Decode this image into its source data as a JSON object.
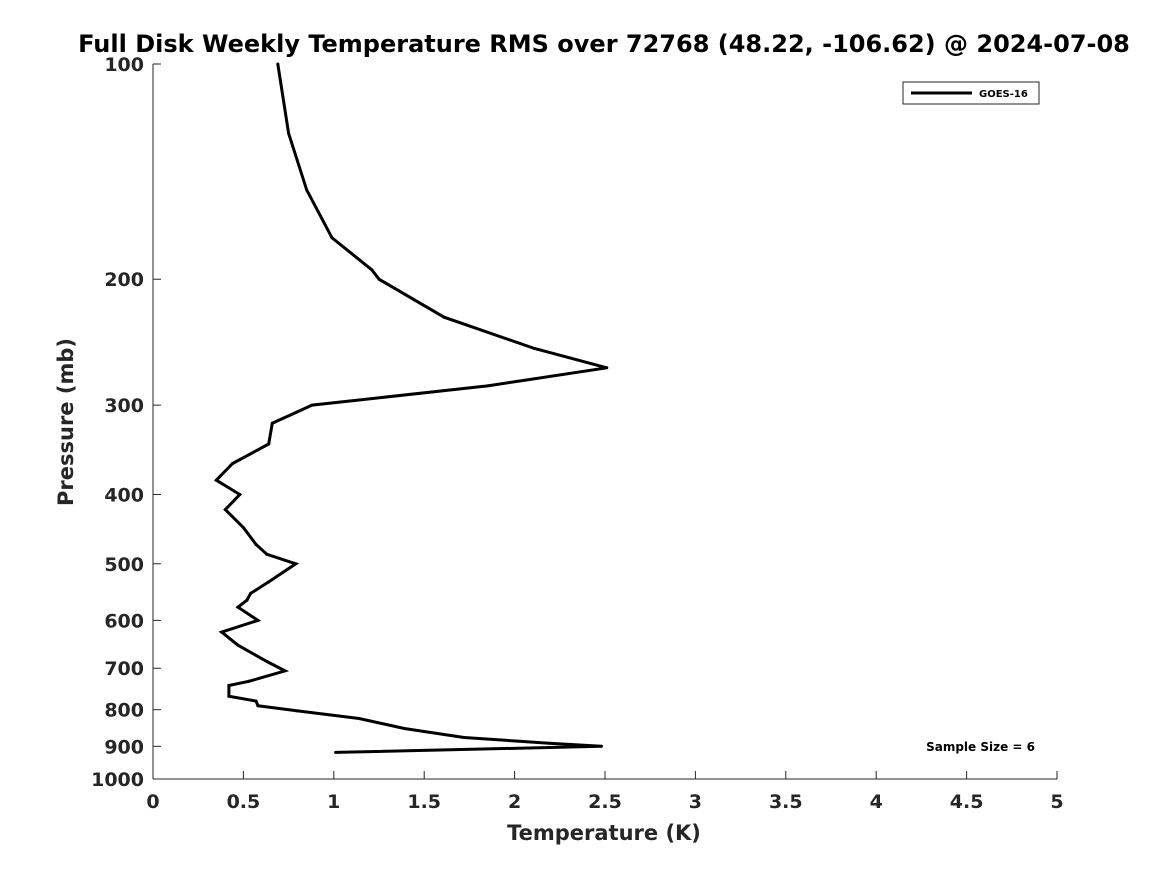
{
  "chart_data": {
    "type": "line",
    "title": "Full Disk Weekly Temperature RMS over 72768 (48.22, -106.62) @ 2024-07-08",
    "xlabel": "Temperature (K)",
    "ylabel": "Pressure (mb)",
    "xlim": [
      0,
      5
    ],
    "ylim": [
      1000,
      100
    ],
    "y_scale": "log",
    "y_reversed": true,
    "x_ticks": [
      "0",
      "0.5",
      "1",
      "1.5",
      "2",
      "2.5",
      "3",
      "3.5",
      "4",
      "4.5",
      "5"
    ],
    "y_ticks": [
      "100",
      "200",
      "300",
      "400",
      "500",
      "600",
      "700",
      "800",
      "900",
      "1000"
    ],
    "grid": false,
    "legend_position": "top-right",
    "series": [
      {
        "name": "GOES-16",
        "color": "#000000",
        "points": [
          [
            0.69,
            100
          ],
          [
            0.75,
            125
          ],
          [
            0.85,
            150
          ],
          [
            0.99,
            175
          ],
          [
            1.21,
            194
          ],
          [
            1.25,
            200
          ],
          [
            1.61,
            226
          ],
          [
            2.11,
            250
          ],
          [
            2.51,
            266
          ],
          [
            1.85,
            282
          ],
          [
            0.88,
            300
          ],
          [
            0.66,
            318
          ],
          [
            0.64,
            340
          ],
          [
            0.44,
            362
          ],
          [
            0.35,
            382
          ],
          [
            0.48,
            400
          ],
          [
            0.4,
            420
          ],
          [
            0.5,
            445
          ],
          [
            0.57,
            470
          ],
          [
            0.63,
            485
          ],
          [
            0.79,
            500
          ],
          [
            0.64,
            530
          ],
          [
            0.54,
            550
          ],
          [
            0.52,
            562
          ],
          [
            0.47,
            575
          ],
          [
            0.58,
            600
          ],
          [
            0.38,
            623
          ],
          [
            0.47,
            650
          ],
          [
            0.63,
            685
          ],
          [
            0.73,
            706
          ],
          [
            0.53,
            730
          ],
          [
            0.42,
            740
          ],
          [
            0.42,
            766
          ],
          [
            0.57,
            778
          ],
          [
            0.58,
            790
          ],
          [
            0.8,
            803
          ],
          [
            1.14,
            823
          ],
          [
            1.39,
            850
          ],
          [
            1.72,
            875
          ],
          [
            2.19,
            891
          ],
          [
            2.48,
            900
          ],
          [
            1.01,
            918
          ]
        ]
      }
    ],
    "annotations": [
      {
        "text": "Sample Size = 6",
        "position": "bottom-right"
      }
    ]
  }
}
